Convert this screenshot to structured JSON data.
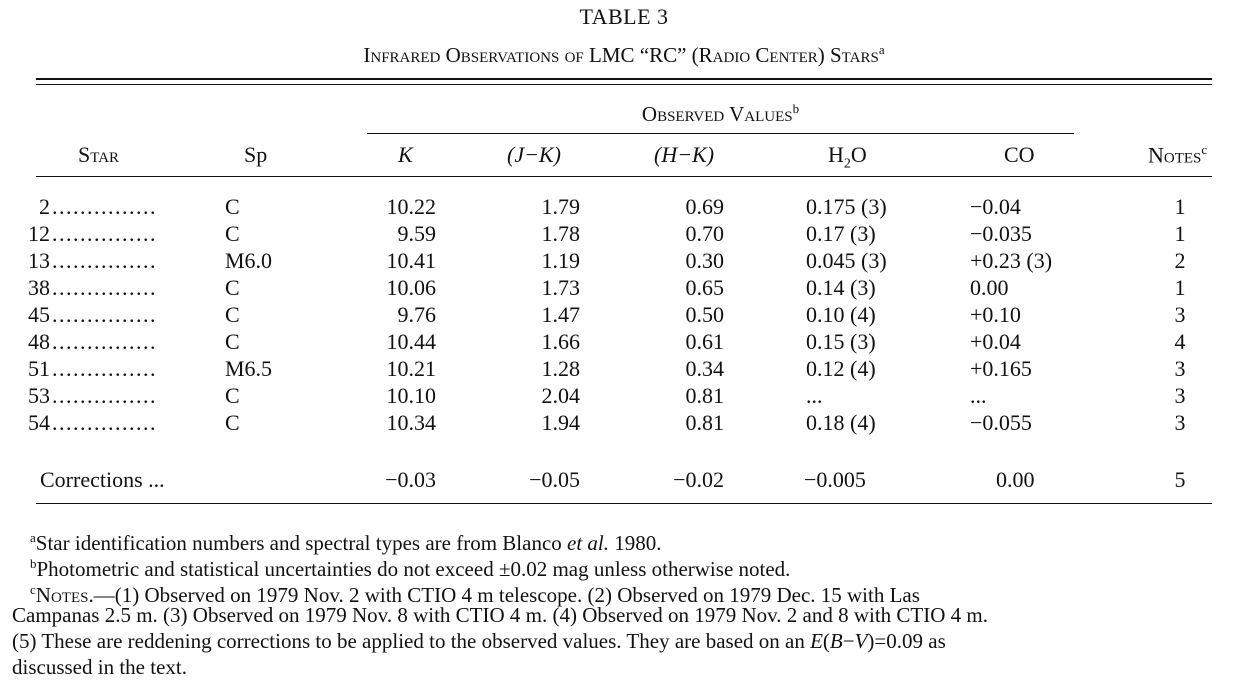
{
  "table": {
    "title": "TABLE 3",
    "caption": "Infrared Observations of LMC “RC” (Radio Center) Stars",
    "caption_mark": "a",
    "observed_group": "Observed Values",
    "observed_mark": "b",
    "headers": {
      "star": "Star",
      "sp": "Sp",
      "k": "K",
      "jk": "(J−K)",
      "hk": "(H−K)",
      "h2o_main": "H",
      "h2o_sub": "2",
      "h2o_tail": "O",
      "co": "CO",
      "notes": "Notes",
      "notes_mark": "c"
    },
    "rows": [
      {
        "star": "2",
        "dots": "...............",
        "sp": "C",
        "k": "10.22",
        "jk": "1.79",
        "hk": "0.69",
        "h2o": "0.175 (3)",
        "co": "−0.04",
        "notes": "1"
      },
      {
        "star": "12",
        "dots": "...............",
        "sp": "C",
        "k": "9.59",
        "jk": "1.78",
        "hk": "0.70",
        "h2o": "0.17 (3)",
        "co": "−0.035",
        "notes": "1"
      },
      {
        "star": "13",
        "dots": "...............",
        "sp": "M6.0",
        "k": "10.41",
        "jk": "1.19",
        "hk": "0.30",
        "h2o": "0.045 (3)",
        "co": "+0.23 (3)",
        "notes": "2"
      },
      {
        "star": "38",
        "dots": "...............",
        "sp": "C",
        "k": "10.06",
        "jk": "1.73",
        "hk": "0.65",
        "h2o": "0.14 (3)",
        "co": "0.00",
        "notes": "1"
      },
      {
        "star": "45",
        "dots": "...............",
        "sp": "C",
        "k": "9.76",
        "jk": "1.47",
        "hk": "0.50",
        "h2o": "0.10 (4)",
        "co": "+0.10",
        "notes": "3"
      },
      {
        "star": "48",
        "dots": "...............",
        "sp": "C",
        "k": "10.44",
        "jk": "1.66",
        "hk": "0.61",
        "h2o": "0.15 (3)",
        "co": "+0.04",
        "notes": "4"
      },
      {
        "star": "51",
        "dots": "...............",
        "sp": "M6.5",
        "k": "10.21",
        "jk": "1.28",
        "hk": "0.34",
        "h2o": "0.12 (4)",
        "co": "+0.165",
        "notes": "3"
      },
      {
        "star": "53",
        "dots": "...............",
        "sp": "C",
        "k": "10.10",
        "jk": "2.04",
        "hk": "0.81",
        "h2o": "...",
        "co": "...",
        "notes": "3"
      },
      {
        "star": "54",
        "dots": "...............",
        "sp": "C",
        "k": "10.34",
        "jk": "1.94",
        "hk": "0.81",
        "h2o": "0.18 (4)",
        "co": "−0.055",
        "notes": "3"
      }
    ],
    "corrections": {
      "label": "Corrections ...",
      "k": "−0.03",
      "jk": "−0.05",
      "hk": "−0.02",
      "h2o": "−0.005",
      "co": "0.00",
      "notes": "5"
    }
  },
  "footnotes": {
    "a_mark": "a",
    "a_text_1": "Star identification numbers and spectral types are from Blanco ",
    "a_etal": "et al.",
    "a_text_2": " 1980.",
    "b_mark": "b",
    "b_text": "Photometric and statistical uncertainties do not exceed ±0.02 mag unless otherwise noted.",
    "c_mark": "c",
    "c_lead": "Notes.",
    "c_text_1": "—(1) Observed on 1979 Nov. 2 with CTIO 4 m telescope. (2) Observed on 1979 Dec. 15 with Las",
    "c_text_2": "Campanas 2.5 m. (3) Observed on 1979 Nov. 8 with CTIO 4 m. (4) Observed on 1979 Nov. 2 and 8 with CTIO 4 m.",
    "c_text_3a": "(5) These are reddening corrections to be applied to the observed values. They are based on an ",
    "c_text_3b": "E",
    "c_text_3c": "(",
    "c_text_3d": "B",
    "c_text_3e": "−",
    "c_text_3f": "V",
    "c_text_3g": ")=0.09 as",
    "c_text_4": "discussed in the text."
  }
}
